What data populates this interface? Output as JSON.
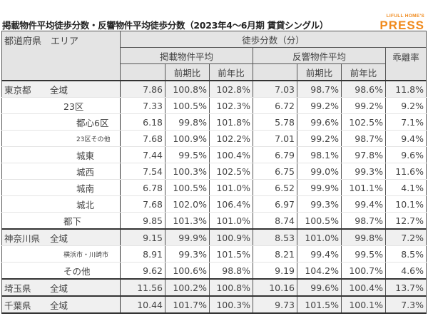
{
  "title": "掲載物件平均徒歩分数・反響物件平均徒歩分数（2023年4～6月期 賃貸シングル）",
  "logo": {
    "top": "LIFULL HOME'S",
    "main": "PRESS"
  },
  "header": {
    "area": "都道府県　エリア",
    "walk_minutes": "徒歩分数（分）",
    "listed_avg": "掲載物件平均",
    "response_avg": "反響物件平均",
    "divergence": "乖離率",
    "qoq": "前期比",
    "yoy": "前年比"
  },
  "rows": [
    {
      "pref": "東京都",
      "area": "全域",
      "level": 0,
      "group_start": true,
      "values": [
        "7.86",
        "100.8%",
        "102.8%",
        "7.03",
        "98.7%",
        "98.6%",
        "11.8%"
      ]
    },
    {
      "pref": "",
      "area": "23区",
      "level": 1,
      "values": [
        "7.33",
        "100.5%",
        "102.3%",
        "6.72",
        "99.2%",
        "99.2%",
        "9.2%"
      ]
    },
    {
      "pref": "",
      "area": "都心6区",
      "level": 2,
      "values": [
        "6.18",
        "99.8%",
        "101.8%",
        "5.78",
        "99.6%",
        "102.5%",
        "7.1%"
      ]
    },
    {
      "pref": "",
      "area": "23区その他",
      "level": 2,
      "small": true,
      "values": [
        "7.68",
        "100.9%",
        "102.2%",
        "7.01",
        "99.2%",
        "98.7%",
        "9.4%"
      ]
    },
    {
      "pref": "",
      "area": "城東",
      "level": 2,
      "values": [
        "7.44",
        "99.5%",
        "100.4%",
        "6.79",
        "98.1%",
        "97.8%",
        "9.6%"
      ]
    },
    {
      "pref": "",
      "area": "城西",
      "level": 2,
      "values": [
        "7.54",
        "100.3%",
        "102.5%",
        "6.75",
        "99.0%",
        "99.3%",
        "11.6%"
      ]
    },
    {
      "pref": "",
      "area": "城南",
      "level": 2,
      "values": [
        "6.78",
        "100.5%",
        "101.0%",
        "6.52",
        "99.9%",
        "101.1%",
        "4.1%"
      ]
    },
    {
      "pref": "",
      "area": "城北",
      "level": 2,
      "values": [
        "7.68",
        "102.0%",
        "106.4%",
        "6.97",
        "99.3%",
        "99.4%",
        "10.1%"
      ]
    },
    {
      "pref": "",
      "area": "都下",
      "level": 1,
      "values": [
        "9.85",
        "101.3%",
        "101.0%",
        "8.74",
        "100.5%",
        "98.7%",
        "12.7%"
      ]
    },
    {
      "pref": "神奈川県",
      "area": "全域",
      "level": 0,
      "group_start": true,
      "values": [
        "9.15",
        "99.9%",
        "100.9%",
        "8.53",
        "101.0%",
        "99.8%",
        "7.2%"
      ]
    },
    {
      "pref": "",
      "area": "横浜市・川崎市",
      "level": 1,
      "small": true,
      "values": [
        "8.91",
        "99.3%",
        "101.5%",
        "8.21",
        "99.4%",
        "99.5%",
        "8.5%"
      ]
    },
    {
      "pref": "",
      "area": "その他",
      "level": 1,
      "values": [
        "9.62",
        "100.6%",
        "98.8%",
        "9.19",
        "104.2%",
        "100.7%",
        "4.6%"
      ]
    },
    {
      "pref": "埼玉県",
      "area": "全域",
      "level": 0,
      "group_start": true,
      "values": [
        "11.56",
        "100.2%",
        "100.8%",
        "10.16",
        "99.6%",
        "100.4%",
        "13.7%"
      ]
    },
    {
      "pref": "千葉県",
      "area": "全域",
      "level": 0,
      "group_start": true,
      "values": [
        "10.44",
        "101.7%",
        "100.3%",
        "9.73",
        "101.5%",
        "100.1%",
        "7.3%"
      ]
    }
  ]
}
